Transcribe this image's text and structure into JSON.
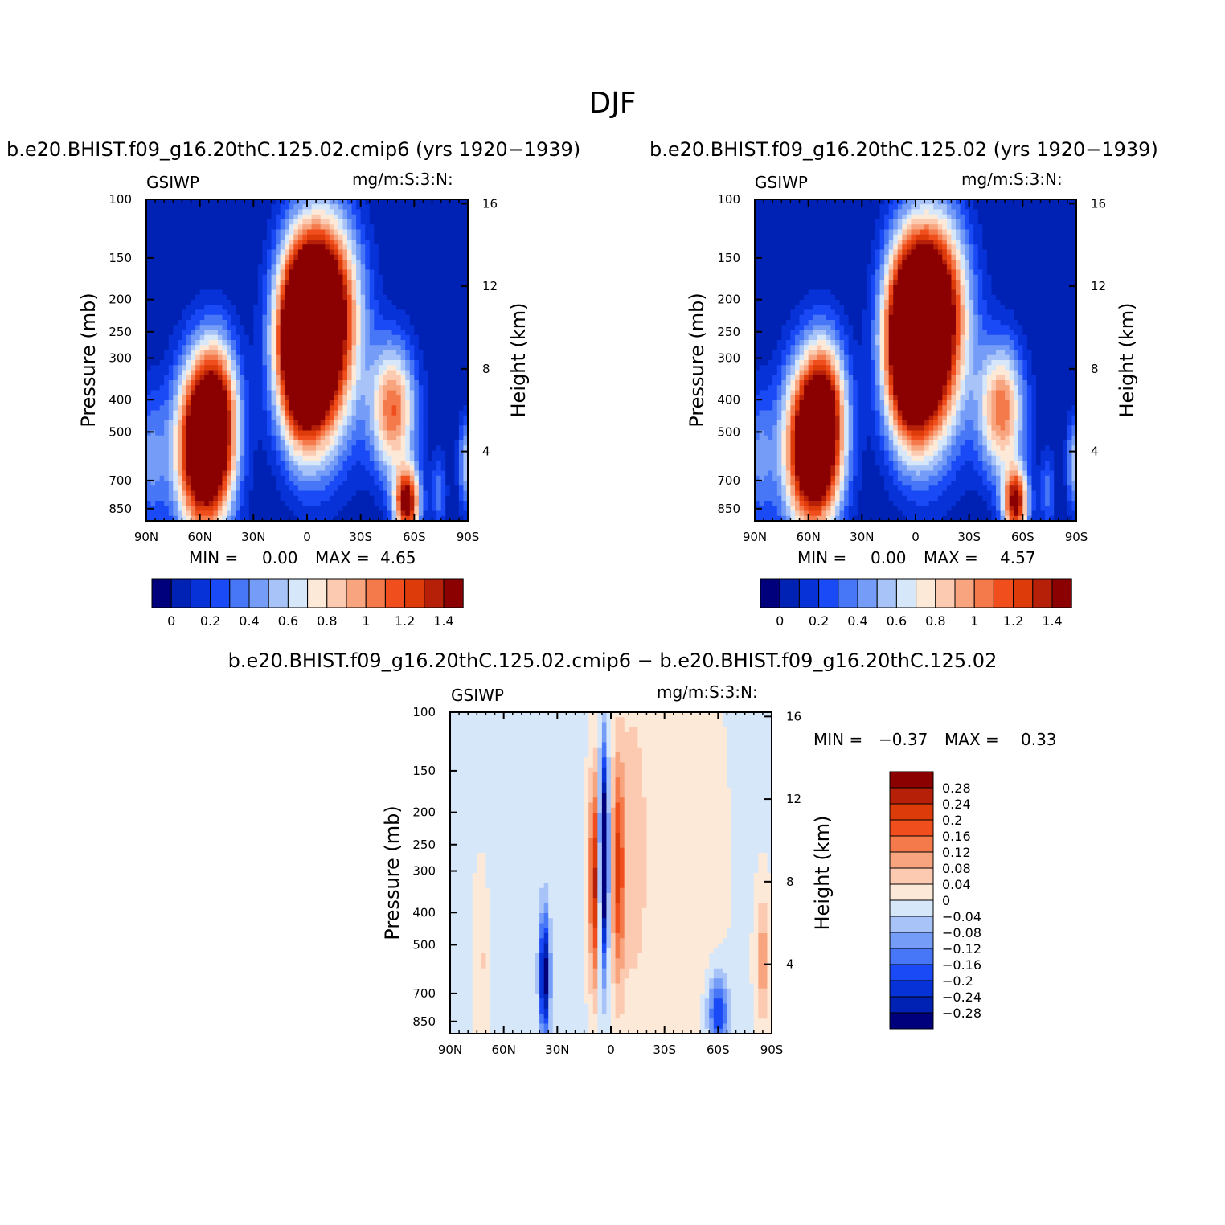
{
  "title": "DJF",
  "colors": {
    "seq": [
      "#00007d",
      "#0022b4",
      "#0732d8",
      "#1a4af6",
      "#4776f6",
      "#759df8",
      "#a8c3f8",
      "#d7e7fa",
      "#fde9d8",
      "#fbcab0",
      "#f7a47f",
      "#f47a4b",
      "#f04e1d",
      "#dd3b0a",
      "#b62009",
      "#8b0000"
    ],
    "diff": [
      "#00007d",
      "#0022b4",
      "#0732d8",
      "#1a4af6",
      "#4776f6",
      "#759df8",
      "#a8c3f8",
      "#d7e7fa",
      "#fde9d8",
      "#fbcab0",
      "#f7a47f",
      "#f47a4b",
      "#f04e1d",
      "#dd3b0a",
      "#b62009",
      "#8b0000"
    ]
  },
  "chart_data": [
    {
      "type": "heatmap",
      "id": "panel1",
      "title": "b.e20.BHIST.f09_g16.20thC.125.02.cmip6 (yrs 1920−1939)",
      "left_label": "GSIWP",
      "right_label": "mg/m:S:3:N:",
      "ylabel": "Pressure (mb)",
      "y2label": "Height (km)",
      "xticks": [
        "90N",
        "60N",
        "30N",
        "0",
        "30S",
        "60S",
        "90S"
      ],
      "yticks": [
        "100",
        "150",
        "200",
        "250",
        "300",
        "400",
        "500",
        "700",
        "850"
      ],
      "y2ticks": [
        "16",
        "12",
        "8",
        "4"
      ],
      "min_label": "MIN =",
      "min_value": "0.00",
      "max_label": "MAX =",
      "max_value": "4.65",
      "levels": [
        0,
        0.1,
        0.2,
        0.3,
        0.4,
        0.5,
        0.6,
        0.7,
        0.8,
        0.9,
        1,
        1.1,
        1.2,
        1.3,
        1.4
      ],
      "colorbar_labels": [
        "0",
        "0.2",
        "0.4",
        "0.6",
        "0.8",
        "1",
        "1.2",
        "1.4"
      ]
    },
    {
      "type": "heatmap",
      "id": "panel2",
      "title": "b.e20.BHIST.f09_g16.20thC.125.02 (yrs 1920−1939)",
      "left_label": "GSIWP",
      "right_label": "mg/m:S:3:N:",
      "ylabel": "Pressure (mb)",
      "y2label": "Height (km)",
      "xticks": [
        "90N",
        "60N",
        "30N",
        "0",
        "30S",
        "60S",
        "90S"
      ],
      "yticks": [
        "100",
        "150",
        "200",
        "250",
        "300",
        "400",
        "500",
        "700",
        "850"
      ],
      "y2ticks": [
        "16",
        "12",
        "8",
        "4"
      ],
      "min_label": "MIN =",
      "min_value": "0.00",
      "max_label": "MAX =",
      "max_value": "4.57",
      "levels": [
        0,
        0.1,
        0.2,
        0.3,
        0.4,
        0.5,
        0.6,
        0.7,
        0.8,
        0.9,
        1,
        1.1,
        1.2,
        1.3,
        1.4
      ],
      "colorbar_labels": [
        "0",
        "0.2",
        "0.4",
        "0.6",
        "0.8",
        "1",
        "1.2",
        "1.4"
      ]
    },
    {
      "type": "heatmap",
      "id": "panel3",
      "title": "b.e20.BHIST.f09_g16.20thC.125.02.cmip6 − b.e20.BHIST.f09_g16.20thC.125.02",
      "left_label": "GSIWP",
      "right_label": "mg/m:S:3:N:",
      "ylabel": "Pressure (mb)",
      "y2label": "Height (km)",
      "xticks": [
        "90N",
        "60N",
        "30N",
        "0",
        "30S",
        "60S",
        "90S"
      ],
      "yticks": [
        "100",
        "150",
        "200",
        "250",
        "300",
        "400",
        "500",
        "700",
        "850"
      ],
      "y2ticks": [
        "16",
        "12",
        "8",
        "4"
      ],
      "min_label": "MIN =",
      "min_value": "−0.37",
      "max_label": "MAX =",
      "max_value": "0.33",
      "levels": [
        -0.28,
        -0.24,
        -0.2,
        -0.16,
        -0.12,
        -0.08,
        -0.04,
        0,
        0.04,
        0.08,
        0.12,
        0.16,
        0.2,
        0.24,
        0.28
      ],
      "colorbar_labels": [
        "0.28",
        "0.24",
        "0.2",
        "0.16",
        "0.12",
        "0.08",
        "0.04",
        "0",
        "−0.04",
        "−0.08",
        "−0.12",
        "−0.16",
        "−0.2",
        "−0.24",
        "−0.28"
      ]
    }
  ]
}
